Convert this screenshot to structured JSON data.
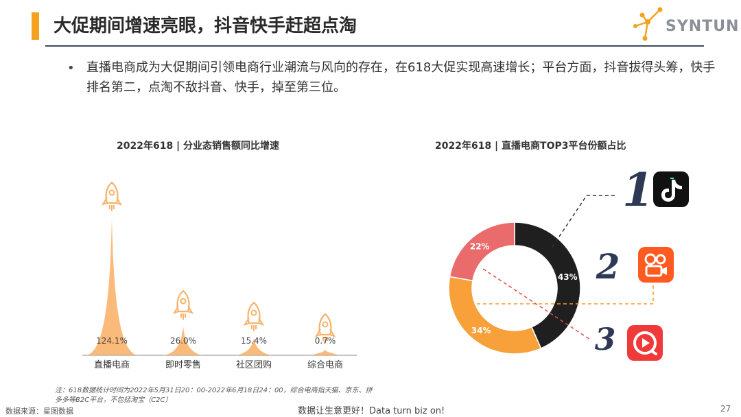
{
  "header": {
    "title": "大促期间增速亮眼，抖音快手赶超点淘",
    "logo_text": "SYNTUN",
    "accent_color": "#f5a11d",
    "rule_color": "#3d4a60"
  },
  "bullet": {
    "symbol": "•",
    "text": "直播电商成为大促期间引领电商行业潮流与风向的存在，在618大促实现高速增长；平台方面，抖音拔得头筹，快手排名第二，点淘不敌抖音、快手，掉至第三位。"
  },
  "chart_data": [
    {
      "type": "bar",
      "title": "2022年618 | 分业态销售额同比增速",
      "categories": [
        "直播电商",
        "即时零售",
        "社区团购",
        "综合电商"
      ],
      "values": [
        124.1,
        26.0,
        15.4,
        0.7
      ],
      "value_labels": [
        "124.1%",
        "26.0%",
        "15.4%",
        "0.7%"
      ],
      "bar_color": "#f9b26b",
      "icon": "rocket-icon"
    },
    {
      "type": "pie",
      "title": "2022年618 | 直播电商TOP3平台份额占比",
      "style": "donut",
      "slices": [
        {
          "value": 43,
          "label": "43%",
          "color": "#1f1f1f"
        },
        {
          "value": 34,
          "label": "34%",
          "color": "#f8a03a"
        },
        {
          "value": 22,
          "label": "22%",
          "color": "#ea6b6b"
        }
      ],
      "ranks": [
        {
          "rank": "1",
          "icon": "douyin-icon",
          "color": "#111111"
        },
        {
          "rank": "2",
          "icon": "kuaishou-icon",
          "color": "#ff5a1f"
        },
        {
          "rank": "3",
          "icon": "diantao-icon",
          "color": "#f03a3a"
        }
      ]
    }
  ],
  "footer": {
    "note": "注：618数据统计时间为2022年5月31日20：00-2022年6月18日24：00，综合电商指天猫、京东、拼多多等B2C平台，不包括淘宝（C2C）",
    "source": "数据来源：星图数据",
    "slogan": "数据让生意更好！Data turn biz on!",
    "page": "27"
  }
}
